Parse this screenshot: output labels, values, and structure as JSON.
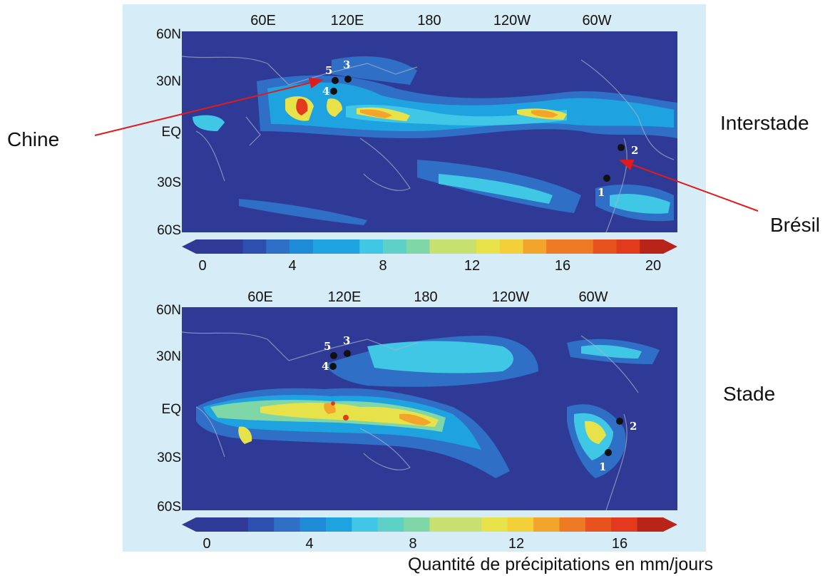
{
  "lon_labels": [
    "60E",
    "120E",
    "180",
    "120W",
    "60W"
  ],
  "lat_labels": [
    "60N",
    "30N",
    "EQ",
    "30S",
    "60S"
  ],
  "top_panel": {
    "label": "Interstade",
    "colorbar_ticks": [
      "0",
      "4",
      "8",
      "12",
      "16",
      "20"
    ],
    "sites": [
      "1",
      "2",
      "3",
      "4",
      "5"
    ]
  },
  "bottom_panel": {
    "label": "Stade",
    "colorbar_ticks": [
      "0",
      "4",
      "8",
      "12",
      "16"
    ],
    "sites": [
      "1",
      "2",
      "3",
      "4",
      "5"
    ]
  },
  "annotations": {
    "china": "Chine",
    "brazil": "Brésil"
  },
  "caption": "Quantité de précipitations en mm/jours",
  "colors": {
    "ocean_low": "#2e3a96",
    "level_1": "#2f6fc6",
    "level_2": "#1fa3e0",
    "level_3": "#41c7e6",
    "level_4": "#7fd7a8",
    "level_5": "#e8e24a",
    "level_6": "#f3a52b",
    "level_7": "#e23a1d",
    "panel_background": "#d6ecf7",
    "arrow": "#e01b1b"
  }
}
